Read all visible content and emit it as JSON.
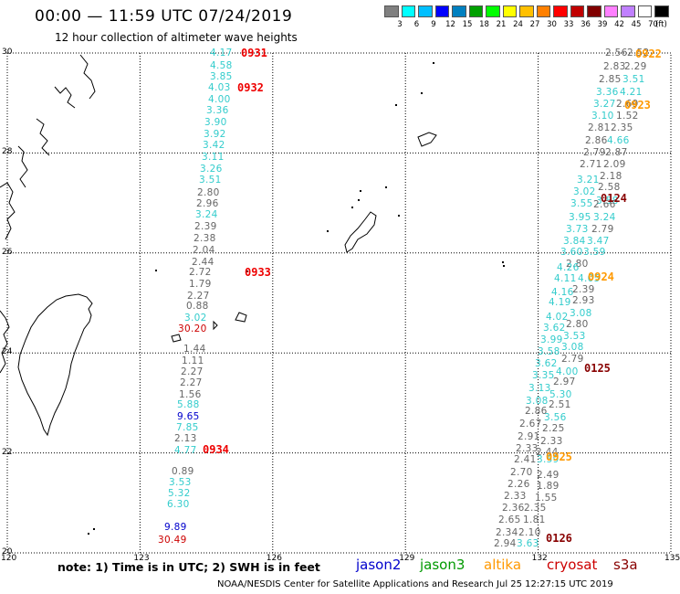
{
  "header": {
    "title": "00:00 — 11:59 UTC 07/24/2019",
    "subtitle": "12 hour collection of altimeter wave heights"
  },
  "colorbar": {
    "unit": "(ft)",
    "colors": [
      "#808080",
      "#00ffff",
      "#00bfff",
      "#0000ff",
      "#0080c0",
      "#00a000",
      "#00ff00",
      "#ffff00",
      "#ffc000",
      "#ff8000",
      "#ff0000",
      "#c00000",
      "#800000",
      "#ff80ff",
      "#c080ff",
      "#ffffff",
      "#000000"
    ],
    "labels": [
      "3",
      "6",
      "9",
      "12",
      "15",
      "18",
      "21",
      "24",
      "27",
      "30",
      "33",
      "36",
      "39",
      "42",
      "45",
      "70"
    ]
  },
  "axes": {
    "x_ticks": [
      "120",
      "123",
      "126",
      "129",
      "132",
      "135"
    ],
    "y_ticks": [
      "30",
      "28",
      "26",
      "24",
      "22",
      "20"
    ]
  },
  "passes": [
    {
      "label": "0931",
      "color": "#ee0000"
    },
    {
      "label": "0932",
      "color": "#ee0000"
    },
    {
      "label": "0933",
      "color": "#ee0000"
    },
    {
      "label": "0934",
      "color": "#ee0000"
    },
    {
      "label": "0922",
      "color": "#ff9900"
    },
    {
      "label": "0923",
      "color": "#ff9900"
    },
    {
      "label": "0924",
      "color": "#ff9900"
    },
    {
      "label": "0925",
      "color": "#ff9900"
    },
    {
      "label": "0124",
      "color": "#880000"
    },
    {
      "label": "0125",
      "color": "#880000"
    },
    {
      "label": "0126",
      "color": "#880000"
    }
  ],
  "track_west": [
    {
      "v": "4.17",
      "c": "#33cccc"
    },
    {
      "v": "4.58",
      "c": "#33cccc"
    },
    {
      "v": "3.85",
      "c": "#33cccc"
    },
    {
      "v": "4.03",
      "c": "#33cccc"
    },
    {
      "v": "4.00",
      "c": "#33cccc"
    },
    {
      "v": "3.36",
      "c": "#33cccc"
    },
    {
      "v": "3.90",
      "c": "#33cccc"
    },
    {
      "v": "3.92",
      "c": "#33cccc"
    },
    {
      "v": "3.42",
      "c": "#33cccc"
    },
    {
      "v": "3.11",
      "c": "#33cccc"
    },
    {
      "v": "3.26",
      "c": "#33cccc"
    },
    {
      "v": "3.51",
      "c": "#33cccc"
    },
    {
      "v": "2.80",
      "c": "#666666"
    },
    {
      "v": "2.96",
      "c": "#666666"
    },
    {
      "v": "3.24",
      "c": "#33cccc"
    },
    {
      "v": "2.39",
      "c": "#666666"
    },
    {
      "v": "2.38",
      "c": "#666666"
    },
    {
      "v": "2.04",
      "c": "#666666"
    },
    {
      "v": "2.44",
      "c": "#666666"
    },
    {
      "v": "2.72",
      "c": "#666666"
    },
    {
      "v": "1.79",
      "c": "#666666"
    },
    {
      "v": "2.27",
      "c": "#666666"
    },
    {
      "v": "0.88",
      "c": "#666666"
    },
    {
      "v": "3.02",
      "c": "#33cccc"
    },
    {
      "v": "30.20",
      "c": "#cc0000"
    },
    {
      "v": "1.44",
      "c": "#666666"
    },
    {
      "v": "1.11",
      "c": "#666666"
    },
    {
      "v": "2.27",
      "c": "#666666"
    },
    {
      "v": "2.27",
      "c": "#666666"
    },
    {
      "v": "1.56",
      "c": "#666666"
    },
    {
      "v": "5.88",
      "c": "#33cccc"
    },
    {
      "v": "9.65",
      "c": "#0000cc"
    },
    {
      "v": "7.85",
      "c": "#33cccc"
    },
    {
      "v": "2.13",
      "c": "#666666"
    },
    {
      "v": "4.77",
      "c": "#33cccc"
    },
    {
      "v": "0.89",
      "c": "#666666"
    },
    {
      "v": "3.53",
      "c": "#33cccc"
    },
    {
      "v": "5.32",
      "c": "#33cccc"
    },
    {
      "v": "6.30",
      "c": "#33cccc"
    },
    {
      "v": "9.89",
      "c": "#0000cc"
    },
    {
      "v": "30.49",
      "c": "#cc0000"
    }
  ],
  "track_east": [
    {
      "v": "2.56",
      "c": "#666666"
    },
    {
      "v": "2.52",
      "c": "#666666"
    },
    {
      "v": "2.83",
      "c": "#666666"
    },
    {
      "v": "2.29",
      "c": "#666666"
    },
    {
      "v": "2.85",
      "c": "#666666"
    },
    {
      "v": "3.51",
      "c": "#33cccc"
    },
    {
      "v": "3.36",
      "c": "#33cccc"
    },
    {
      "v": "4.21",
      "c": "#33cccc"
    },
    {
      "v": "3.27",
      "c": "#33cccc"
    },
    {
      "v": "2.69",
      "c": "#666666"
    },
    {
      "v": "3.10",
      "c": "#33cccc"
    },
    {
      "v": "1.52",
      "c": "#666666"
    },
    {
      "v": "2.81",
      "c": "#666666"
    },
    {
      "v": "2.35",
      "c": "#666666"
    },
    {
      "v": "2.86",
      "c": "#666666"
    },
    {
      "v": "4.66",
      "c": "#33cccc"
    },
    {
      "v": "2.79",
      "c": "#666666"
    },
    {
      "v": "2.87",
      "c": "#666666"
    },
    {
      "v": "2.71",
      "c": "#666666"
    },
    {
      "v": "2.09",
      "c": "#666666"
    },
    {
      "v": "2.18",
      "c": "#666666"
    },
    {
      "v": "3.21",
      "c": "#33cccc"
    },
    {
      "v": "2.58",
      "c": "#666666"
    },
    {
      "v": "3.02",
      "c": "#33cccc"
    },
    {
      "v": "3.55",
      "c": "#33cccc"
    },
    {
      "v": "3.58",
      "c": "#33cccc"
    },
    {
      "v": "2.66",
      "c": "#666666"
    },
    {
      "v": "3.95",
      "c": "#33cccc"
    },
    {
      "v": "3.24",
      "c": "#33cccc"
    },
    {
      "v": "3.73",
      "c": "#33cccc"
    },
    {
      "v": "2.79",
      "c": "#666666"
    },
    {
      "v": "3.84",
      "c": "#33cccc"
    },
    {
      "v": "3.47",
      "c": "#33cccc"
    },
    {
      "v": "3.60",
      "c": "#33cccc"
    },
    {
      "v": "3.59",
      "c": "#33cccc"
    },
    {
      "v": "2.80",
      "c": "#666666"
    },
    {
      "v": "4.26",
      "c": "#33cccc"
    },
    {
      "v": "4.11",
      "c": "#33cccc"
    },
    {
      "v": "4.05",
      "c": "#33cccc"
    },
    {
      "v": "2.39",
      "c": "#666666"
    },
    {
      "v": "4.16",
      "c": "#33cccc"
    },
    {
      "v": "2.93",
      "c": "#666666"
    },
    {
      "v": "4.19",
      "c": "#33cccc"
    },
    {
      "v": "3.08",
      "c": "#33cccc"
    },
    {
      "v": "4.02",
      "c": "#33cccc"
    },
    {
      "v": "2.80",
      "c": "#666666"
    },
    {
      "v": "3.62",
      "c": "#33cccc"
    },
    {
      "v": "3.53",
      "c": "#33cccc"
    },
    {
      "v": "3.99",
      "c": "#33cccc"
    },
    {
      "v": "3.08",
      "c": "#33cccc"
    },
    {
      "v": "3.58",
      "c": "#33cccc"
    },
    {
      "v": "2.79",
      "c": "#666666"
    },
    {
      "v": "3.62",
      "c": "#33cccc"
    },
    {
      "v": "4.00",
      "c": "#33cccc"
    },
    {
      "v": "3.35",
      "c": "#33cccc"
    },
    {
      "v": "2.97",
      "c": "#666666"
    },
    {
      "v": "3.13",
      "c": "#33cccc"
    },
    {
      "v": "5.30",
      "c": "#33cccc"
    },
    {
      "v": "3.08",
      "c": "#33cccc"
    },
    {
      "v": "2.51",
      "c": "#666666"
    },
    {
      "v": "2.86",
      "c": "#666666"
    },
    {
      "v": "3.56",
      "c": "#33cccc"
    },
    {
      "v": "2.67",
      "c": "#666666"
    },
    {
      "v": "2.25",
      "c": "#666666"
    },
    {
      "v": "2.91",
      "c": "#666666"
    },
    {
      "v": "2.33",
      "c": "#666666"
    },
    {
      "v": "2.33",
      "c": "#666666"
    },
    {
      "v": "2.44",
      "c": "#666666"
    },
    {
      "v": "2.41",
      "c": "#666666"
    },
    {
      "v": "3.59",
      "c": "#33cccc"
    },
    {
      "v": "2.70",
      "c": "#666666"
    },
    {
      "v": "2.49",
      "c": "#666666"
    },
    {
      "v": "2.26",
      "c": "#666666"
    },
    {
      "v": "1.89",
      "c": "#666666"
    },
    {
      "v": "2.33",
      "c": "#666666"
    },
    {
      "v": "1.55",
      "c": "#666666"
    },
    {
      "v": "2.36",
      "c": "#666666"
    },
    {
      "v": "2.35",
      "c": "#666666"
    },
    {
      "v": "2.65",
      "c": "#666666"
    },
    {
      "v": "1.81",
      "c": "#666666"
    },
    {
      "v": "2.34",
      "c": "#666666"
    },
    {
      "v": "2.10",
      "c": "#666666"
    },
    {
      "v": "2.94",
      "c": "#666666"
    },
    {
      "v": "3.63",
      "c": "#33cccc"
    }
  ],
  "footer": {
    "note": "note: 1) Time is in UTC; 2) SWH is in feet",
    "legend": [
      {
        "name": "jason2",
        "color": "#0000cc"
      },
      {
        "name": "jason3",
        "color": "#009900"
      },
      {
        "name": "altika",
        "color": "#ff9900"
      },
      {
        "name": "cryosat",
        "color": "#cc0000"
      },
      {
        "name": "s3a",
        "color": "#880000"
      }
    ],
    "credit": "NOAA/NESDIS Center for Satellite Applications and Research    Jul 25 12:27:15 UTC 2019"
  }
}
